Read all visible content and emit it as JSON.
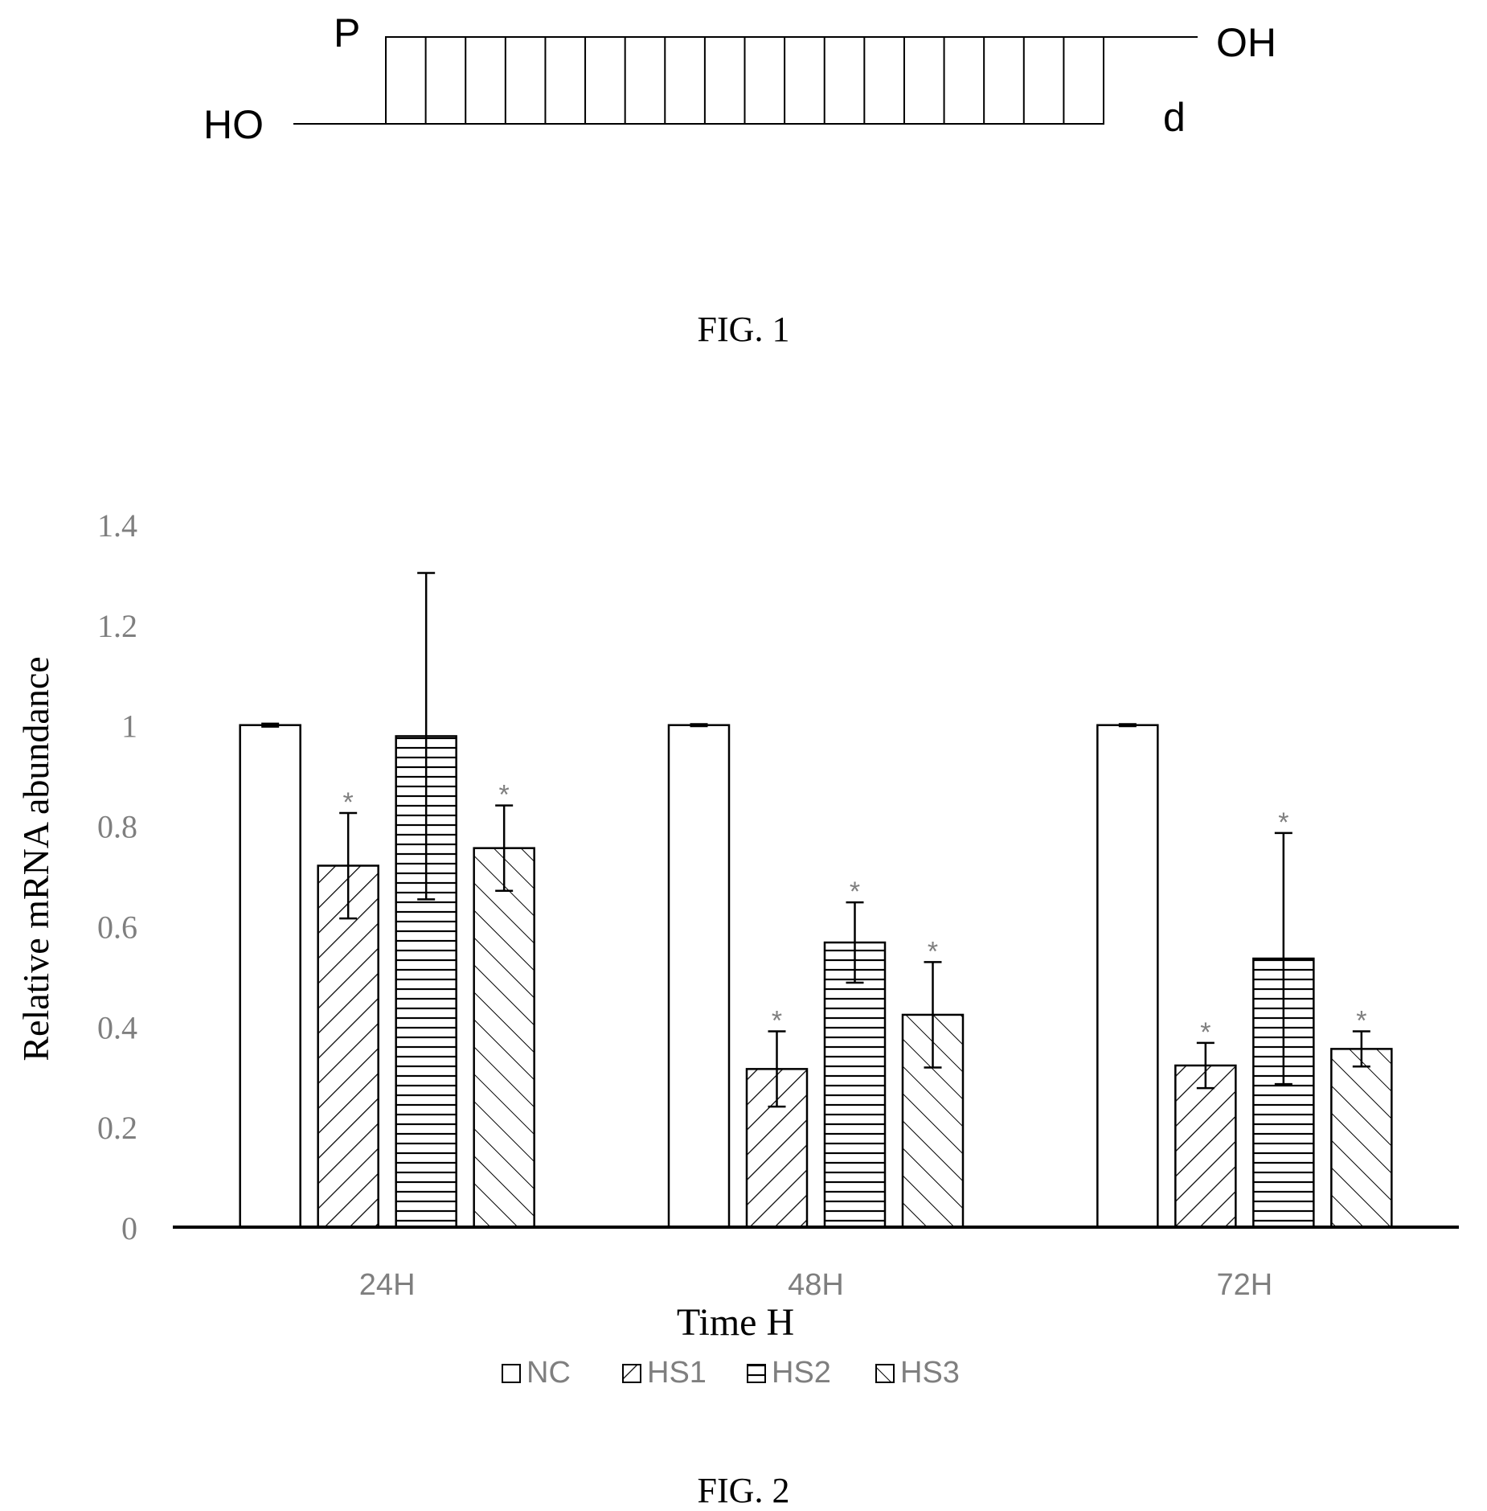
{
  "figure1": {
    "caption": "FIG. 1",
    "labels": {
      "top_left": "P",
      "top_right": "OH",
      "bottom_left": "HO",
      "bottom_right": "d"
    },
    "duplex_positions": 18
  },
  "figure2": {
    "caption": "FIG. 2",
    "colors": {
      "axis": "#000000",
      "tick_text": "#7f7f7f",
      "bars": "#000000",
      "fill": "#ffffff"
    },
    "chart_data": {
      "type": "bar",
      "categories": [
        "24H",
        "48H",
        "72H"
      ],
      "xlabel": "Time H",
      "ylabel": "Relative mRNA abundance",
      "ylim": [
        0,
        1.4
      ],
      "yticks": [
        "0",
        "0.2",
        "0.4",
        "0.6",
        "0.8",
        "1",
        "1.2",
        "1.4"
      ],
      "grid": false,
      "legend_position": "bottom",
      "significance_marker": "*",
      "series": [
        {
          "name": "NC",
          "pattern": "empty",
          "values": [
            1.0,
            1.0,
            1.0
          ],
          "errors": [
            0.003,
            0.002,
            0.002
          ],
          "significant": [
            false,
            false,
            false
          ]
        },
        {
          "name": "HS1",
          "pattern": "forward-diagonal",
          "values": [
            0.72,
            0.315,
            0.322
          ],
          "errors": [
            0.105,
            0.075,
            0.045
          ],
          "significant": [
            true,
            true,
            true
          ]
        },
        {
          "name": "HS2",
          "pattern": "horizontal",
          "values": [
            0.978,
            0.567,
            0.535
          ],
          "errors": [
            0.325,
            0.08,
            0.25
          ],
          "significant": [
            false,
            true,
            true
          ]
        },
        {
          "name": "HS3",
          "pattern": "backward-diagonal",
          "values": [
            0.755,
            0.423,
            0.355
          ],
          "errors": [
            0.085,
            0.105,
            0.035
          ],
          "significant": [
            true,
            true,
            true
          ]
        }
      ]
    }
  }
}
